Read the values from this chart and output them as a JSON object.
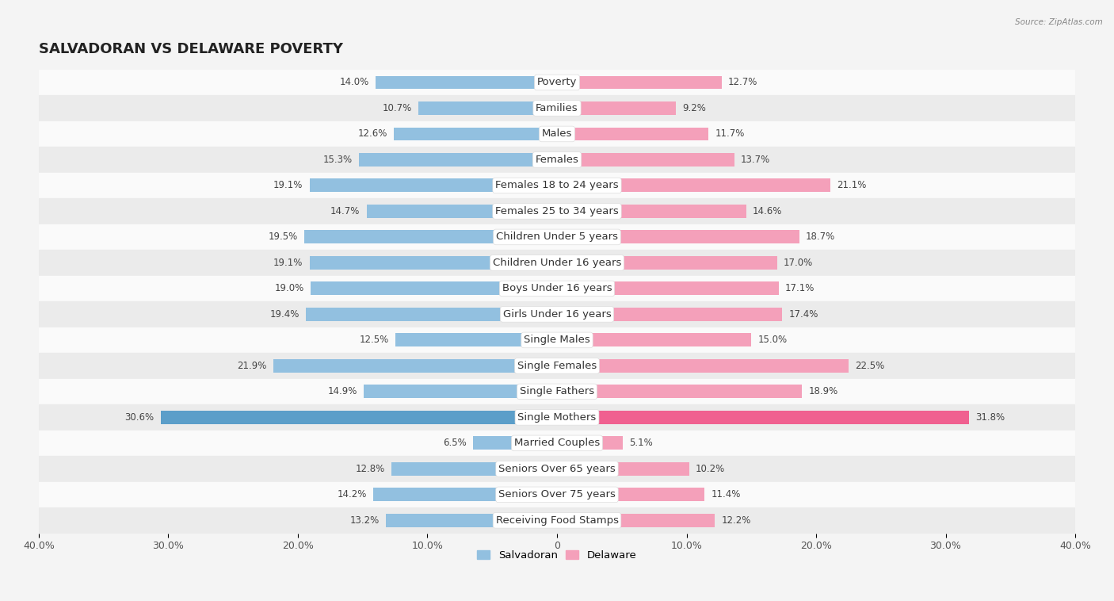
{
  "title": "SALVADORAN VS DELAWARE POVERTY",
  "source": "Source: ZipAtlas.com",
  "categories": [
    "Poverty",
    "Families",
    "Males",
    "Females",
    "Females 18 to 24 years",
    "Females 25 to 34 years",
    "Children Under 5 years",
    "Children Under 16 years",
    "Boys Under 16 years",
    "Girls Under 16 years",
    "Single Males",
    "Single Females",
    "Single Fathers",
    "Single Mothers",
    "Married Couples",
    "Seniors Over 65 years",
    "Seniors Over 75 years",
    "Receiving Food Stamps"
  ],
  "salvadoran": [
    14.0,
    10.7,
    12.6,
    15.3,
    19.1,
    14.7,
    19.5,
    19.1,
    19.0,
    19.4,
    12.5,
    21.9,
    14.9,
    30.6,
    6.5,
    12.8,
    14.2,
    13.2
  ],
  "delaware": [
    12.7,
    9.2,
    11.7,
    13.7,
    21.1,
    14.6,
    18.7,
    17.0,
    17.1,
    17.4,
    15.0,
    22.5,
    18.9,
    31.8,
    5.1,
    10.2,
    11.4,
    12.2
  ],
  "salvadoran_color": "#92C0E0",
  "delaware_color": "#F4A0BA",
  "salvadoran_highlight_color": "#5B9EC9",
  "delaware_highlight_color": "#F06090",
  "background_color": "#F4F4F4",
  "row_white": "#FAFAFA",
  "row_gray": "#EBEBEB",
  "bar_height": 0.52,
  "xlim": 40.0,
  "legend_labels": [
    "Salvadoran",
    "Delaware"
  ],
  "title_fontsize": 13,
  "label_fontsize": 9.5,
  "value_fontsize": 8.5,
  "tick_fontsize": 9
}
